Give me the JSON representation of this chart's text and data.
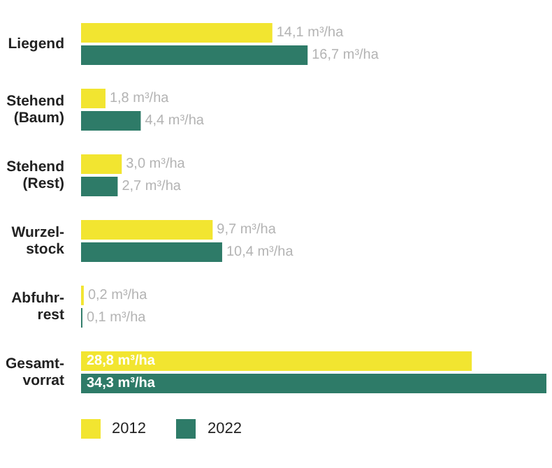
{
  "chart_data": {
    "type": "bar",
    "orientation": "horizontal",
    "categories": [
      "Liegend",
      "Stehend\n(Baum)",
      "Stehend\n(Rest)",
      "Wurzel-\nstock",
      "Abfuhr-\nrest",
      "Gesamt-\nvorrat"
    ],
    "series": [
      {
        "name": "2012",
        "color": "#f2e530",
        "values": [
          14.1,
          1.8,
          3.0,
          9.7,
          0.2,
          28.8
        ],
        "value_labels": [
          "14,1 m³/ha",
          "1,8 m³/ha",
          "3,0 m³/ha",
          "9,7 m³/ha",
          "0,2 m³/ha",
          "28,8 m³/ha"
        ]
      },
      {
        "name": "2022",
        "color": "#2e7b68",
        "values": [
          16.7,
          4.4,
          2.7,
          10.4,
          0.1,
          34.3
        ],
        "value_labels": [
          "16,7 m³/ha",
          "4,4 m³/ha",
          "2,7 m³/ha",
          "10,4 m³/ha",
          "0,1 m³/ha",
          "34,3 m³/ha"
        ]
      }
    ],
    "legend": "bottom left",
    "grid": false
  }
}
